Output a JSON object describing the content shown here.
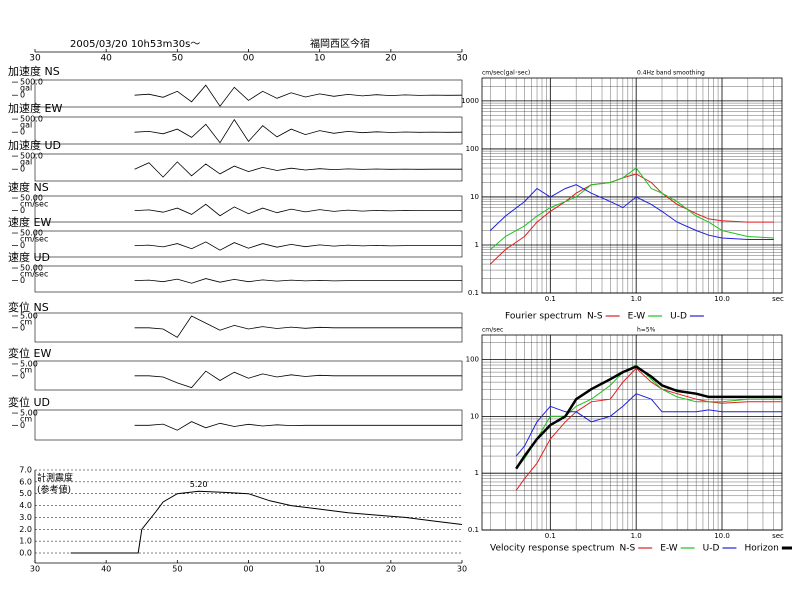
{
  "chart_data": [
    {
      "type": "waveform",
      "title": "2005/03/20  10h53m30s～",
      "location": "福岡西区今宿",
      "xlim": [
        0,
        60
      ],
      "xticks": [
        {
          "value": 0,
          "label": "30"
        },
        {
          "value": 10,
          "label": "40"
        },
        {
          "value": 20,
          "label": "50"
        },
        {
          "value": 30,
          "label": "00"
        },
        {
          "value": 40,
          "label": "10"
        },
        {
          "value": 50,
          "label": "20"
        },
        {
          "value": 60,
          "label": "30"
        }
      ],
      "x": [
        14,
        16,
        18,
        20,
        22,
        24,
        26,
        28,
        30,
        32,
        34,
        36,
        38,
        40,
        42,
        44,
        46,
        48,
        50,
        52,
        54,
        56,
        58,
        60
      ],
      "traces": [
        {
          "name": "加速度 NS",
          "unit": "gal",
          "ylim": [
            -450,
            580
          ],
          "yticks": [
            {
              "value": 500,
              "label": "500.0"
            },
            0
          ],
          "color": "#000000",
          "values": [
            0,
            40,
            -80,
            150,
            -250,
            380,
            -420,
            300,
            -200,
            150,
            -120,
            90,
            -70,
            50,
            -40,
            30,
            -25,
            20,
            -15,
            10,
            -8,
            5,
            -3,
            0
          ]
        },
        {
          "name": "加速度 EW",
          "unit": "gal",
          "ylim": [
            -450,
            580
          ],
          "yticks": [
            {
              "value": 500,
              "label": "500.0"
            },
            0
          ],
          "color": "#000000",
          "values": [
            0,
            30,
            -60,
            120,
            -200,
            300,
            -400,
            480,
            -350,
            250,
            -180,
            120,
            -90,
            60,
            -40,
            30,
            -20,
            15,
            -10,
            8,
            -5,
            3,
            -2,
            0
          ]
        },
        {
          "name": "加速度 UD",
          "unit": "gal",
          "ylim": [
            -450,
            580
          ],
          "yticks": [
            {
              "value": 500,
              "label": "500.0"
            },
            0
          ],
          "color": "#000000",
          "values": [
            0,
            250,
            -300,
            280,
            -250,
            200,
            -180,
            120,
            -90,
            70,
            -50,
            40,
            -30,
            20,
            -15,
            10,
            -8,
            6,
            -4,
            3,
            -2,
            1,
            -1,
            0
          ]
        },
        {
          "name": "速度 NS",
          "unit": "cm/sec",
          "ylim": [
            -45,
            58
          ],
          "yticks": [
            {
              "value": 50,
              "label": "50.00"
            },
            0
          ],
          "color": "#000000",
          "values": [
            0,
            3,
            -6,
            10,
            -15,
            25,
            -20,
            15,
            -12,
            10,
            -8,
            6,
            -5,
            4,
            -3,
            2,
            -2,
            1,
            -1,
            1,
            0,
            0,
            0,
            0
          ]
        },
        {
          "name": "速度 EW",
          "unit": "cm/sec",
          "ylim": [
            -45,
            58
          ],
          "yticks": [
            {
              "value": 50,
              "label": "50.00"
            },
            0
          ],
          "color": "#000000",
          "values": [
            0,
            2,
            -5,
            8,
            -12,
            15,
            -18,
            12,
            -10,
            8,
            -6,
            5,
            -4,
            3,
            -2,
            2,
            -1,
            1,
            -1,
            0,
            0,
            0,
            0,
            0
          ]
        },
        {
          "name": "速度 UD",
          "unit": "cm/sec",
          "ylim": [
            -45,
            58
          ],
          "yticks": [
            {
              "value": 50,
              "label": "50.00"
            },
            0
          ],
          "color": "#000000",
          "values": [
            0,
            2,
            -4,
            6,
            -10,
            8,
            -6,
            5,
            -4,
            3,
            -2,
            2,
            -1,
            1,
            -1,
            0,
            0,
            0,
            0,
            0,
            0,
            0,
            0,
            0
          ]
        },
        {
          "name": "変位 NS",
          "unit": "cm",
          "ylim": [
            -6,
            6.25
          ],
          "yticks": [
            {
              "value": 5,
              "label": "5.00"
            },
            0
          ],
          "color": "#000000",
          "values": [
            0,
            0,
            -0.5,
            -4,
            5,
            2,
            -1,
            1,
            -0.5,
            0.5,
            -0.3,
            0.3,
            -0.2,
            0.2,
            0,
            0,
            0,
            0,
            0,
            0,
            0,
            0,
            0,
            0
          ]
        },
        {
          "name": "変位 EW",
          "unit": "cm",
          "ylim": [
            -6,
            6.25
          ],
          "yticks": [
            {
              "value": 5,
              "label": "5.00"
            },
            0
          ],
          "color": "#000000",
          "values": [
            0,
            0,
            -0.5,
            -3,
            -5,
            2,
            -2,
            1.5,
            -1,
            0.8,
            -0.5,
            0.4,
            -0.3,
            0.2,
            0,
            0,
            0,
            0,
            0,
            0,
            0,
            0,
            0,
            0
          ]
        },
        {
          "name": "変位 UD",
          "unit": "cm",
          "ylim": [
            -6,
            6.25
          ],
          "yticks": [
            {
              "value": 5,
              "label": "5.00"
            },
            0
          ],
          "color": "#000000",
          "values": [
            0,
            0,
            0.5,
            -2,
            1.5,
            -1,
            0.8,
            -0.5,
            0.4,
            -0.3,
            0.2,
            -0.1,
            0,
            0,
            0,
            0,
            0,
            0,
            0,
            0,
            0,
            0,
            0,
            0
          ]
        }
      ]
    },
    {
      "type": "line",
      "title": "計測震度",
      "subtitle": "(参考値)",
      "xlim": [
        0,
        60
      ],
      "xticks": [
        {
          "value": 0,
          "label": "30"
        },
        {
          "value": 10,
          "label": "40"
        },
        {
          "value": 20,
          "label": "50"
        },
        {
          "value": 30,
          "label": "00"
        },
        {
          "value": 40,
          "label": "10"
        },
        {
          "value": 50,
          "label": "20"
        },
        {
          "value": 60,
          "label": "30"
        }
      ],
      "ylim": [
        0,
        7
      ],
      "yticks": [
        {
          "value": 0,
          "label": "0.0"
        },
        {
          "value": 1,
          "label": "1.0"
        },
        {
          "value": 2,
          "label": "2.0"
        },
        {
          "value": 3,
          "label": "3.0"
        },
        {
          "value": 4,
          "label": "4.0"
        },
        {
          "value": 5,
          "label": "5.0"
        },
        {
          "value": 6,
          "label": "6.0"
        },
        {
          "value": 7,
          "label": "7.0"
        }
      ],
      "grid": true,
      "x": [
        5,
        14.5,
        15,
        17,
        18,
        20,
        23,
        27,
        30,
        33,
        36,
        40,
        44,
        48,
        52,
        56,
        60
      ],
      "series": [
        {
          "name": "計測震度",
          "color": "#000000",
          "values": [
            0,
            0,
            2,
            3.5,
            4.3,
            5,
            5.2,
            5.1,
            5,
            4.4,
            4,
            3.7,
            3.4,
            3.2,
            3,
            2.7,
            2.4
          ]
        }
      ],
      "peak": {
        "x": 23,
        "value": 5.2,
        "label": "5.20"
      }
    },
    {
      "type": "line",
      "log_x": true,
      "log_y": true,
      "y_unit": "cm/sec(gal･sec)",
      "x_unit": "sec",
      "subtitle": "0.4Hz band smoothing",
      "legend_title": "Fourier spectrum",
      "xlim": [
        0.016,
        50
      ],
      "xticks": [
        0.1,
        {
          "value": 1,
          "label": "1.0"
        },
        {
          "value": 10,
          "label": "10.0"
        }
      ],
      "ylim": [
        0.1,
        3000
      ],
      "yticks": [
        0.1,
        1,
        10,
        100,
        1000
      ],
      "grid": true,
      "minor_grid": true,
      "x": [
        0.02,
        0.03,
        0.05,
        0.07,
        0.1,
        0.15,
        0.2,
        0.3,
        0.5,
        0.7,
        1,
        1.5,
        2,
        3,
        5,
        7,
        10,
        20,
        40
      ],
      "series": [
        {
          "name": "N-S",
          "color": "#e02020",
          "values": [
            0.4,
            0.8,
            1.5,
            3,
            5,
            8,
            12,
            18,
            20,
            25,
            30,
            20,
            12,
            7,
            4.5,
            3.5,
            3.2,
            3,
            3
          ]
        },
        {
          "name": "E-W",
          "color": "#20c020",
          "values": [
            0.8,
            1.5,
            2.5,
            4,
            6,
            8,
            10,
            18,
            20,
            25,
            40,
            15,
            12,
            8,
            4,
            3,
            2,
            1.5,
            1.4
          ]
        },
        {
          "name": "U-D",
          "color": "#2020e0",
          "values": [
            2,
            4,
            8,
            15,
            10,
            15,
            18,
            12,
            8,
            6,
            10,
            7,
            5,
            3,
            2,
            1.6,
            1.4,
            1.3,
            1.3
          ]
        }
      ]
    },
    {
      "type": "line",
      "log_x": true,
      "log_y": true,
      "y_unit": "cm/sec",
      "x_unit": "sec",
      "subtitle": "h=5%",
      "legend_title": "Velocity response spectrum",
      "xlim": [
        0.016,
        50
      ],
      "xticks": [
        0.1,
        {
          "value": 1,
          "label": "1.0"
        },
        {
          "value": 10,
          "label": "10.0"
        }
      ],
      "ylim": [
        0.1,
        270
      ],
      "yticks": [
        0.1,
        1,
        10,
        100
      ],
      "grid": true,
      "minor_grid": true,
      "x": [
        0.04,
        0.05,
        0.07,
        0.1,
        0.15,
        0.2,
        0.3,
        0.5,
        0.7,
        1,
        1.5,
        2,
        3,
        5,
        7,
        10,
        20,
        50
      ],
      "series": [
        {
          "name": "N-S",
          "color": "#e02020",
          "values": [
            0.5,
            0.8,
            1.5,
            4,
            8,
            12,
            18,
            20,
            40,
            70,
            40,
            30,
            25,
            20,
            18,
            17,
            18,
            18
          ]
        },
        {
          "name": "E-W",
          "color": "#20c020",
          "values": [
            1.2,
            1.8,
            4,
            10,
            10,
            15,
            20,
            35,
            60,
            80,
            45,
            30,
            22,
            18,
            18,
            18,
            20,
            20
          ]
        },
        {
          "name": "U-D",
          "color": "#2020e0",
          "values": [
            2,
            3,
            8,
            15,
            12,
            12,
            8,
            10,
            15,
            25,
            20,
            12,
            12,
            12,
            13,
            12,
            12,
            12
          ]
        },
        {
          "name": "Horizon",
          "color": "#000000",
          "values": [
            1.2,
            2,
            4,
            7,
            10,
            20,
            30,
            45,
            60,
            75,
            50,
            35,
            28,
            25,
            22,
            22,
            22,
            22
          ]
        }
      ]
    }
  ]
}
